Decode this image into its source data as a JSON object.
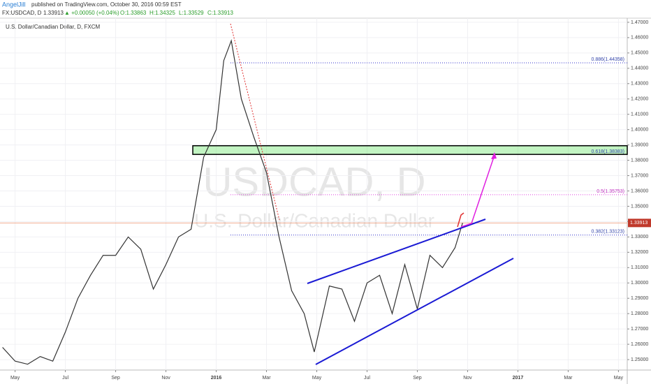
{
  "header": {
    "author": "AngelJill",
    "published": "published on TradingView.com, October 30, 2016 00:59 EST",
    "symbol": "FX:USDCAD, D",
    "last": "1.33913",
    "change": "▲ +0.00050 (+0.04%)",
    "open": "O:1.33863",
    "high": "H:1.34325",
    "low": "L:1.33529",
    "close": "C:1.33913"
  },
  "chart_data": {
    "type": "line",
    "title": "U.S. Dollar/Canadian Dollar, D, FXCM",
    "watermark": "USDCAD, D",
    "watermark_sub": "U.S. Dollar/Canadian Dollar",
    "series": [
      {
        "name": "USDCAD",
        "color": "#333333",
        "x": [
          -0.5,
          0,
          0.5,
          1,
          1.5,
          2,
          2.5,
          3,
          3.5,
          4,
          4.5,
          5,
          5.5,
          6,
          6.5,
          7,
          7.5,
          8,
          8.3,
          8.6,
          9,
          9.5,
          10,
          10.5,
          11,
          11.5,
          11.9,
          12.5,
          13,
          13.5,
          14,
          14.5,
          15,
          15.5,
          16,
          16.5,
          17,
          17.5,
          17.8
        ],
        "values": [
          1.258,
          1.249,
          1.247,
          1.252,
          1.249,
          1.268,
          1.29,
          1.305,
          1.318,
          1.318,
          1.33,
          1.322,
          1.296,
          1.312,
          1.33,
          1.335,
          1.382,
          1.4,
          1.445,
          1.458,
          1.42,
          1.395,
          1.372,
          1.33,
          1.295,
          1.28,
          1.255,
          1.298,
          1.296,
          1.275,
          1.3,
          1.305,
          1.28,
          1.312,
          1.283,
          1.318,
          1.31,
          1.323,
          1.33913
        ]
      }
    ],
    "levels": [
      {
        "label": "0.886(1.44358)",
        "value": 1.44358
      },
      {
        "label": "0.5(1.35753)",
        "value": 1.35753
      },
      {
        "label": "0.382(1.33123)",
        "value": 1.33123
      }
    ],
    "zone": {
      "label": "0.618(1.38383)",
      "low": 1.38383,
      "high": 1.3895
    },
    "last_price": {
      "label": "1.33913",
      "value": 1.33913
    },
    "xlim": [
      -0.6,
      24.35
    ],
    "ylim": [
      1.2432,
      1.4727
    ],
    "xticks": [
      {
        "value": 0,
        "label": "May"
      },
      {
        "value": 2,
        "label": "Jul"
      },
      {
        "value": 4,
        "label": "Sep"
      },
      {
        "value": 6,
        "label": "Nov"
      },
      {
        "value": 8,
        "label": "2016"
      },
      {
        "value": 10,
        "label": "Mar"
      },
      {
        "value": 12,
        "label": "May"
      },
      {
        "value": 14,
        "label": "Jul"
      },
      {
        "value": 16,
        "label": "Sep"
      },
      {
        "value": 18,
        "label": "Nov"
      },
      {
        "value": 20,
        "label": "2017"
      },
      {
        "value": 22,
        "label": "Mar"
      },
      {
        "value": 24,
        "label": "May"
      }
    ],
    "yticks": [
      {
        "value": 1.25,
        "label": "1.25000"
      },
      {
        "value": 1.26,
        "label": "1.26000"
      },
      {
        "value": 1.27,
        "label": "1.27000"
      },
      {
        "value": 1.28,
        "label": "1.28000"
      },
      {
        "value": 1.29,
        "label": "1.29000"
      },
      {
        "value": 1.3,
        "label": "1.30000"
      },
      {
        "value": 1.31,
        "label": "1.31000"
      },
      {
        "value": 1.32,
        "label": "1.32000"
      },
      {
        "value": 1.33,
        "label": "1.33000"
      },
      {
        "value": 1.34,
        "label": "1.34000"
      },
      {
        "value": 1.35,
        "label": "1.35000"
      },
      {
        "value": 1.36,
        "label": "1.36000"
      },
      {
        "value": 1.37,
        "label": "1.37000"
      },
      {
        "value": 1.38,
        "label": "1.38000"
      },
      {
        "value": 1.39,
        "label": "1.39000"
      },
      {
        "value": 1.4,
        "label": "1.40000"
      },
      {
        "value": 1.41,
        "label": "1.41000"
      },
      {
        "value": 1.42,
        "label": "1.42000"
      },
      {
        "value": 1.43,
        "label": "1.43000"
      },
      {
        "value": 1.44,
        "label": "1.44000"
      },
      {
        "value": 1.45,
        "label": "1.45000"
      },
      {
        "value": 1.46,
        "label": "1.46000"
      },
      {
        "value": 1.47,
        "label": "1.47000"
      }
    ],
    "grid": true
  }
}
